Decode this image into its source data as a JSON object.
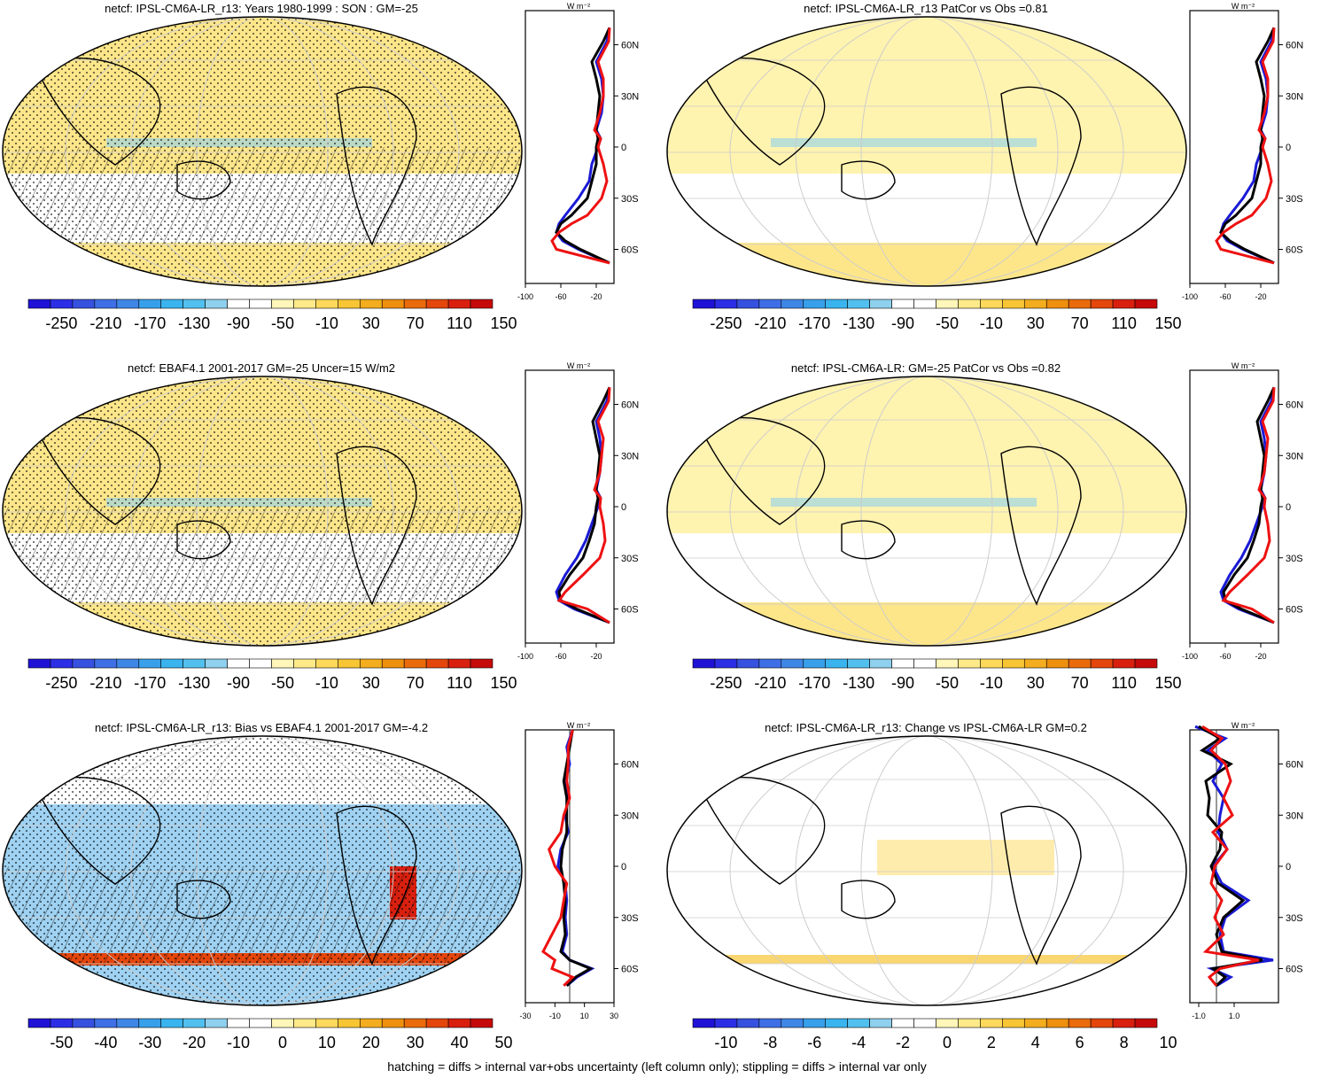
{
  "footer": "hatching = diffs > internal var+obs uncertainty (left column only); stippling = diffs > internal var only",
  "profile_unit": "W m⁻²",
  "lat_labels": [
    "60N",
    "30N",
    "0",
    "30S",
    "60S"
  ],
  "colors": {
    "cbar_main": [
      "#1f12d6",
      "#2c2ee6",
      "#3651e0",
      "#3f6fe6",
      "#3f87e6",
      "#38a0ea",
      "#3ab4ef",
      "#52c0ef",
      "#8ed0ee",
      "#ffffff",
      "#ffffff",
      "#fff6b9",
      "#ffea8a",
      "#fed95c",
      "#f8c535",
      "#f3ad1e",
      "#ee8f0e",
      "#ea6b0b",
      "#e4460c",
      "#d9200f",
      "#c60a0a"
    ],
    "cbar_bias": [
      "#1f12d6",
      "#2c2ee6",
      "#3651e0",
      "#3f6fe6",
      "#3f87e6",
      "#38a0ea",
      "#3ab4ef",
      "#52c0ef",
      "#8ed0ee",
      "#ffffff",
      "#ffffff",
      "#fff6b9",
      "#ffea8a",
      "#fed95c",
      "#f8c535",
      "#f3ad1e",
      "#ee8f0e",
      "#ea6b0b",
      "#e4460c",
      "#d9200f",
      "#c60a0a"
    ],
    "model": "#000000",
    "model_alt": "#1a1ad6",
    "obs": "#ee1111"
  },
  "chart_data": [
    {
      "type": "heatmap",
      "title": "netcf: IPSL-CM6A-LR_r13: Years 1980-1999 : SON : GM=-25",
      "colorbar_labels": [
        "-250",
        "-210",
        "-170",
        "-130",
        "-90",
        "-50",
        "-10",
        "30",
        "70",
        "110",
        "150"
      ],
      "profile_xticks": [
        "-100",
        "-60",
        "-20"
      ],
      "profile_xlim": [
        -100,
        0
      ],
      "profile_series": [
        {
          "lat": [
            70,
            62,
            50,
            40,
            30,
            20,
            10,
            5,
            0,
            -10,
            -20,
            -30,
            -40,
            -45,
            -50,
            -55,
            -60,
            -68
          ],
          "values": [
            -5,
            -8,
            -20,
            -14,
            -12,
            -14,
            -20,
            -15,
            -18,
            -25,
            -28,
            -40,
            -55,
            -62,
            -65,
            -58,
            -40,
            -5
          ]
        },
        {
          "lat": [
            70,
            62,
            50,
            40,
            30,
            20,
            10,
            5,
            0,
            -10,
            -20,
            -30,
            -40,
            -45,
            -50,
            -55,
            -60,
            -68
          ],
          "values": [
            -5,
            -12,
            -25,
            -20,
            -16,
            -18,
            -20,
            -18,
            -20,
            -20,
            -25,
            -30,
            -48,
            -60,
            -65,
            -55,
            -38,
            -5
          ]
        },
        {
          "lat": [
            70,
            62,
            50,
            40,
            30,
            20,
            10,
            5,
            0,
            -10,
            -20,
            -30,
            -40,
            -45,
            -50,
            -55,
            -60,
            -68
          ],
          "values": [
            -5,
            -6,
            -18,
            -12,
            -12,
            -16,
            -22,
            -15,
            -18,
            -12,
            -8,
            -14,
            -30,
            -48,
            -62,
            -70,
            -65,
            -5
          ]
        }
      ]
    },
    {
      "type": "heatmap",
      "title": "netcf: IPSL-CM6A-LR_r13 PatCor vs Obs =0.81",
      "colorbar_labels": [
        "-250",
        "-210",
        "-170",
        "-130",
        "-90",
        "-50",
        "-10",
        "30",
        "70",
        "110",
        "150"
      ],
      "profile_xticks": [
        "-100",
        "-60",
        "-20"
      ],
      "profile_xlim": [
        -100,
        0
      ],
      "profile_series": [
        {
          "lat": [
            70,
            62,
            50,
            40,
            30,
            20,
            10,
            5,
            0,
            -10,
            -20,
            -30,
            -40,
            -45,
            -50,
            -55,
            -60,
            -68
          ],
          "values": [
            -5,
            -8,
            -20,
            -14,
            -12,
            -14,
            -20,
            -15,
            -18,
            -25,
            -28,
            -40,
            -55,
            -62,
            -65,
            -58,
            -40,
            -5
          ]
        },
        {
          "lat": [
            70,
            62,
            50,
            40,
            30,
            20,
            10,
            5,
            0,
            -10,
            -20,
            -30,
            -40,
            -45,
            -50,
            -55,
            -60,
            -68
          ],
          "values": [
            -5,
            -12,
            -25,
            -20,
            -16,
            -18,
            -20,
            -18,
            -20,
            -20,
            -25,
            -30,
            -48,
            -60,
            -65,
            -55,
            -38,
            -5
          ]
        },
        {
          "lat": [
            70,
            62,
            50,
            40,
            30,
            20,
            10,
            5,
            0,
            -10,
            -20,
            -30,
            -40,
            -45,
            -50,
            -55,
            -60,
            -68
          ],
          "values": [
            -5,
            -6,
            -18,
            -12,
            -12,
            -16,
            -22,
            -15,
            -18,
            -12,
            -8,
            -14,
            -30,
            -48,
            -62,
            -70,
            -65,
            -5
          ]
        }
      ]
    },
    {
      "type": "heatmap",
      "title": "netcf: EBAF4.1 2001-2017 GM=-25 Uncer=15 W/m2",
      "colorbar_labels": [
        "-250",
        "-210",
        "-170",
        "-130",
        "-90",
        "-50",
        "-10",
        "30",
        "70",
        "110",
        "150"
      ],
      "profile_xticks": [
        "-100",
        "-60",
        "-20"
      ],
      "profile_xlim": [
        -100,
        0
      ],
      "profile_series": [
        {
          "lat": [
            70,
            62,
            50,
            40,
            30,
            20,
            10,
            5,
            0,
            -10,
            -20,
            -30,
            -40,
            -50,
            -55,
            -60,
            -68
          ],
          "values": [
            -5,
            -8,
            -20,
            -16,
            -14,
            -16,
            -20,
            -15,
            -18,
            -25,
            -32,
            -42,
            -55,
            -65,
            -62,
            -45,
            -5
          ]
        },
        {
          "lat": [
            70,
            62,
            50,
            40,
            30,
            20,
            10,
            5,
            0,
            -10,
            -20,
            -30,
            -40,
            -50,
            -55,
            -60,
            -68
          ],
          "values": [
            -5,
            -12,
            -24,
            -20,
            -16,
            -18,
            -20,
            -18,
            -20,
            -22,
            -28,
            -35,
            -50,
            -62,
            -60,
            -42,
            -5
          ]
        },
        {
          "lat": [
            70,
            62,
            50,
            40,
            30,
            20,
            10,
            5,
            0,
            -10,
            -20,
            -30,
            -40,
            -50,
            -55,
            -60,
            -68
          ],
          "values": [
            -5,
            -6,
            -18,
            -12,
            -14,
            -16,
            -22,
            -15,
            -16,
            -12,
            -10,
            -16,
            -35,
            -55,
            -62,
            -30,
            -5
          ]
        }
      ]
    },
    {
      "type": "heatmap",
      "title": "netcf: IPSL-CM6A-LR: GM=-25 PatCor vs Obs =0.82",
      "colorbar_labels": [
        "-250",
        "-210",
        "-170",
        "-130",
        "-90",
        "-50",
        "-10",
        "30",
        "70",
        "110",
        "150"
      ],
      "profile_xticks": [
        "-100",
        "-60",
        "-20"
      ],
      "profile_xlim": [
        -100,
        0
      ],
      "profile_series": [
        {
          "lat": [
            70,
            62,
            50,
            40,
            30,
            20,
            10,
            5,
            0,
            -10,
            -20,
            -30,
            -40,
            -50,
            -55,
            -60,
            -68
          ],
          "values": [
            -5,
            -8,
            -20,
            -16,
            -14,
            -16,
            -20,
            -15,
            -18,
            -25,
            -32,
            -42,
            -55,
            -65,
            -62,
            -45,
            -5
          ]
        },
        {
          "lat": [
            70,
            62,
            50,
            40,
            30,
            20,
            10,
            5,
            0,
            -10,
            -20,
            -30,
            -40,
            -50,
            -55,
            -60,
            -68
          ],
          "values": [
            -5,
            -12,
            -24,
            -20,
            -16,
            -18,
            -20,
            -18,
            -20,
            -22,
            -28,
            -35,
            -50,
            -62,
            -60,
            -42,
            -5
          ]
        },
        {
          "lat": [
            70,
            62,
            50,
            40,
            30,
            20,
            10,
            5,
            0,
            -10,
            -20,
            -30,
            -40,
            -50,
            -55,
            -60,
            -68
          ],
          "values": [
            -5,
            -6,
            -18,
            -12,
            -14,
            -16,
            -22,
            -15,
            -16,
            -12,
            -10,
            -16,
            -35,
            -55,
            -62,
            -30,
            -5
          ]
        }
      ]
    },
    {
      "type": "heatmap",
      "title": "netcf: IPSL-CM6A-LR_r13: Bias vs EBAF4.1 2001-2017  GM=-4.2",
      "colorbar_labels": [
        "-50",
        "-40",
        "-30",
        "-20",
        "-10",
        "0",
        "10",
        "20",
        "30",
        "40",
        "50"
      ],
      "profile_xticks": [
        "-30",
        "-10",
        "10",
        "30"
      ],
      "profile_xlim": [
        -30,
        30
      ],
      "profile_series": [
        {
          "lat": [
            80,
            70,
            60,
            50,
            40,
            30,
            20,
            10,
            0,
            -10,
            -20,
            -30,
            -40,
            -50,
            -55,
            -60,
            -65,
            -70
          ],
          "values": [
            2,
            -2,
            0,
            -3,
            -1,
            -3,
            -1,
            -6,
            -8,
            -3,
            -2,
            -3,
            -2,
            -5,
            0,
            15,
            5,
            -2
          ]
        },
        {
          "lat": [
            80,
            70,
            60,
            50,
            40,
            30,
            20,
            10,
            0,
            -10,
            -20,
            -30,
            -40,
            -50,
            -55,
            -60,
            -65,
            -70
          ],
          "values": [
            2,
            0,
            -2,
            -4,
            -2,
            -2,
            -2,
            -5,
            -6,
            -4,
            -3,
            -4,
            -3,
            -6,
            0,
            14,
            4,
            -2
          ]
        },
        {
          "lat": [
            80,
            70,
            60,
            50,
            40,
            30,
            20,
            10,
            0,
            -10,
            -20,
            -30,
            -40,
            -50,
            -55,
            -60,
            -65,
            -70
          ],
          "values": [
            2,
            -1,
            -1,
            -2,
            0,
            -4,
            -6,
            -14,
            -10,
            -2,
            -4,
            -6,
            -12,
            -18,
            -10,
            -12,
            2,
            -4
          ]
        }
      ]
    },
    {
      "type": "heatmap",
      "title": "netcf: IPSL-CM6A-LR_r13: Change vs IPSL-CM6A-LR GM=0.2",
      "colorbar_labels": [
        "-10",
        "-8",
        "-6",
        "-4",
        "-2",
        "0",
        "2",
        "4",
        "6",
        "8",
        "10"
      ],
      "profile_xticks": [
        "-1.0",
        "1.0"
      ],
      "profile_xlim": [
        -1.5,
        3.5
      ],
      "profile_series": [
        {
          "lat": [
            82,
            75,
            68,
            60,
            50,
            40,
            30,
            20,
            10,
            0,
            -10,
            -20,
            -30,
            -40,
            -50,
            -55,
            -60,
            -65,
            -70
          ],
          "values": [
            -1.2,
            0.5,
            -0.5,
            0.3,
            -0.2,
            0.4,
            0.2,
            0.1,
            0.6,
            -0.2,
            0.3,
            1.8,
            0.5,
            0.2,
            0.4,
            3.2,
            -0.3,
            0.8,
            0
          ]
        },
        {
          "lat": [
            82,
            75,
            68,
            60,
            50,
            40,
            30,
            20,
            10,
            0,
            -10,
            -20,
            -30,
            -40,
            -50,
            -55,
            -60,
            -65,
            -70
          ],
          "values": [
            -1.0,
            0.2,
            -0.8,
            0.8,
            -0.6,
            -0.4,
            -0.5,
            0.3,
            0.2,
            -0.3,
            0.1,
            1.5,
            0.4,
            0,
            0.3,
            2.6,
            -0.2,
            0.5,
            0
          ]
        },
        {
          "lat": [
            82,
            75,
            68,
            60,
            50,
            40,
            30,
            20,
            10,
            0,
            -10,
            -20,
            -30,
            -40,
            -50,
            -55,
            -60,
            -65,
            -70
          ],
          "values": [
            -0.8,
            0.3,
            -0.3,
            0.5,
            0.8,
            0.4,
            0.9,
            -0.2,
            0.6,
            -0.1,
            -0.3,
            0.3,
            -0.1,
            0.4,
            -0.6,
            2.4,
            0.2,
            -0.4,
            0
          ]
        }
      ]
    }
  ]
}
